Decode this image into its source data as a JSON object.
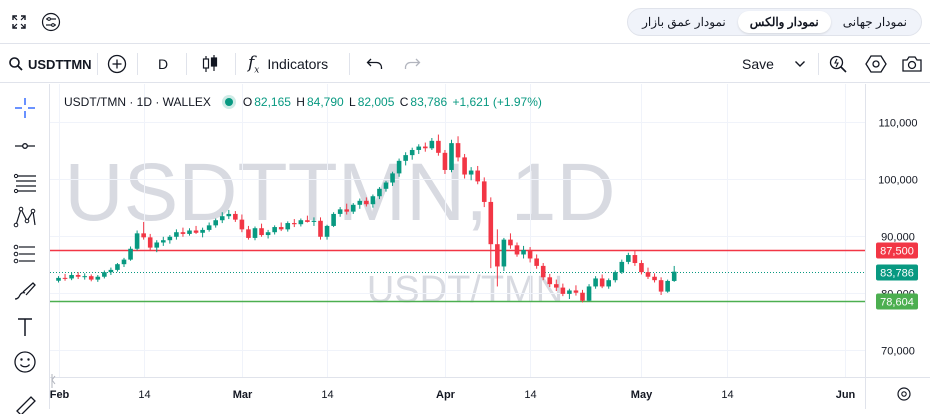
{
  "topbar": {
    "tabs": [
      {
        "label": "نمودار جهانی",
        "active": false
      },
      {
        "label": "نمودار والکس",
        "active": true
      },
      {
        "label": "نمودار عمق بازار",
        "active": false
      }
    ]
  },
  "toolbar": {
    "symbol": "USDTTMN",
    "interval": "D",
    "indicators_label": "Indicators",
    "save_label": "Save"
  },
  "legend": {
    "title": "USDT/TMN · 1D · WALLEX",
    "open_label": "O",
    "open": "82,165",
    "high_label": "H",
    "high": "84,790",
    "low_label": "L",
    "low": "82,005",
    "close_label": "C",
    "close": "83,786",
    "change": "+1,621 (+1.97%)"
  },
  "watermark": {
    "large": "USDTTMN, 1D",
    "small": "USDT/TMN"
  },
  "colors": {
    "up": "#089981",
    "down": "#f23645",
    "resistance": "#f23645",
    "support": "#4caf50",
    "price": "#089981"
  },
  "chart_data": {
    "type": "candlestick",
    "y_ticks": [
      {
        "value": 110000,
        "label": "110,000"
      },
      {
        "value": 100000,
        "label": "100,000"
      },
      {
        "value": 90000,
        "label": "90,000"
      },
      {
        "value": 80000,
        "label": "80,000"
      },
      {
        "value": 70000,
        "label": "70,000"
      }
    ],
    "x_ticks": [
      {
        "day": 0,
        "label": "Feb"
      },
      {
        "day": 13,
        "label": "14"
      },
      {
        "day": 28,
        "label": "Mar"
      },
      {
        "day": 41,
        "label": "14"
      },
      {
        "day": 59,
        "label": "Apr"
      },
      {
        "day": 72,
        "label": "14"
      },
      {
        "day": 89,
        "label": "May"
      },
      {
        "day": 102,
        "label": "14"
      },
      {
        "day": 120,
        "label": "Jun"
      }
    ],
    "horizontal_lines": [
      {
        "value": 87500,
        "label": "87,500",
        "color": "#f23645"
      },
      {
        "value": 78604,
        "label": "78,604",
        "color": "#4caf50"
      }
    ],
    "last_price": {
      "value": 83786,
      "label": "83,786"
    },
    "candles": [
      [
        82200,
        83000,
        81900,
        82700
      ],
      [
        82700,
        83400,
        82200,
        82600
      ],
      [
        82600,
        83600,
        82300,
        83200
      ],
      [
        83200,
        83700,
        82500,
        82900
      ],
      [
        82900,
        83500,
        82400,
        83000
      ],
      [
        83000,
        83300,
        82100,
        82400
      ],
      [
        82400,
        83200,
        82000,
        82900
      ],
      [
        82900,
        84000,
        82600,
        83700
      ],
      [
        83700,
        84500,
        83200,
        84100
      ],
      [
        84100,
        85300,
        83800,
        85100
      ],
      [
        85100,
        86200,
        84600,
        85900
      ],
      [
        85900,
        88200,
        85700,
        87800
      ],
      [
        87800,
        91000,
        87500,
        90500
      ],
      [
        90500,
        92500,
        89400,
        89800
      ],
      [
        89800,
        90400,
        87400,
        88000
      ],
      [
        88000,
        89300,
        87200,
        88900
      ],
      [
        88900,
        89900,
        88300,
        89300
      ],
      [
        89300,
        90200,
        88700,
        89900
      ],
      [
        89900,
        91200,
        89400,
        90700
      ],
      [
        90700,
        91500,
        89900,
        90400
      ],
      [
        90400,
        91400,
        90100,
        91000
      ],
      [
        91000,
        91800,
        90400,
        90600
      ],
      [
        90600,
        91500,
        89800,
        91100
      ],
      [
        91100,
        92400,
        90800,
        91900
      ],
      [
        91900,
        93100,
        91500,
        92800
      ],
      [
        92800,
        94200,
        92300,
        93500
      ],
      [
        93500,
        94600,
        93000,
        93900
      ],
      [
        93900,
        94400,
        92500,
        92900
      ],
      [
        92900,
        93800,
        90700,
        91200
      ],
      [
        91200,
        91800,
        89400,
        89700
      ],
      [
        89700,
        91700,
        89300,
        91400
      ],
      [
        91400,
        92200,
        89900,
        90200
      ],
      [
        90200,
        91100,
        89600,
        90700
      ],
      [
        90700,
        91900,
        90300,
        91600
      ],
      [
        91600,
        92400,
        90900,
        91200
      ],
      [
        91200,
        92600,
        90800,
        92300
      ],
      [
        92300,
        93000,
        91600,
        92100
      ],
      [
        92100,
        93100,
        91700,
        92800
      ],
      [
        92800,
        93600,
        92400,
        92500
      ],
      [
        92500,
        93300,
        91800,
        92700
      ],
      [
        92700,
        93300,
        89400,
        89900
      ],
      [
        89900,
        92000,
        89400,
        91800
      ],
      [
        91800,
        94200,
        91600,
        93900
      ],
      [
        93900,
        95100,
        93400,
        94700
      ],
      [
        94700,
        95700,
        93800,
        94300
      ],
      [
        94300,
        95800,
        93900,
        95500
      ],
      [
        95500,
        96600,
        94800,
        96200
      ],
      [
        96200,
        96800,
        95200,
        95600
      ],
      [
        95600,
        97300,
        95000,
        97000
      ],
      [
        97000,
        98600,
        96500,
        98300
      ],
      [
        98300,
        99700,
        97800,
        99400
      ],
      [
        99400,
        101300,
        98800,
        101000
      ],
      [
        101000,
        103600,
        100400,
        103200
      ],
      [
        103200,
        104700,
        102400,
        104200
      ],
      [
        104200,
        105500,
        103400,
        105100
      ],
      [
        105100,
        106100,
        104400,
        105700
      ],
      [
        105700,
        106400,
        104800,
        105400
      ],
      [
        105400,
        107200,
        105100,
        106700
      ],
      [
        106700,
        107800,
        104100,
        104600
      ],
      [
        104600,
        105100,
        100900,
        101600
      ],
      [
        101600,
        106900,
        101200,
        106300
      ],
      [
        106300,
        107500,
        103100,
        103800
      ],
      [
        103800,
        104400,
        100100,
        100800
      ],
      [
        100800,
        102100,
        99800,
        101500
      ],
      [
        101500,
        102300,
        99100,
        99600
      ],
      [
        99600,
        100300,
        95100,
        96000
      ],
      [
        96000,
        96800,
        84400,
        88600
      ],
      [
        88600,
        91200,
        81200,
        84700
      ],
      [
        84700,
        89700,
        83900,
        89400
      ],
      [
        89400,
        90500,
        87800,
        88400
      ],
      [
        88400,
        88900,
        86400,
        86800
      ],
      [
        86800,
        88300,
        86100,
        87600
      ],
      [
        87600,
        88100,
        85400,
        86100
      ],
      [
        86100,
        86800,
        84300,
        84800
      ],
      [
        84800,
        85300,
        82300,
        82800
      ],
      [
        82800,
        83400,
        81100,
        81600
      ],
      [
        81600,
        82400,
        80400,
        81000
      ],
      [
        81000,
        81700,
        79500,
        79900
      ],
      [
        79900,
        80800,
        79000,
        80500
      ],
      [
        80500,
        81400,
        79600,
        80100
      ],
      [
        80100,
        80600,
        78400,
        78700
      ],
      [
        78700,
        81600,
        78600,
        81200
      ],
      [
        81200,
        83000,
        80800,
        82600
      ],
      [
        82600,
        83300,
        80900,
        81200
      ],
      [
        81200,
        82600,
        80800,
        82300
      ],
      [
        82300,
        84000,
        81900,
        83700
      ],
      [
        83700,
        85900,
        83400,
        85500
      ],
      [
        85500,
        87100,
        85100,
        86700
      ],
      [
        86700,
        87400,
        84800,
        85300
      ],
      [
        85300,
        85800,
        83300,
        83700
      ],
      [
        83700,
        84500,
        82500,
        82900
      ],
      [
        82900,
        83500,
        81900,
        82300
      ],
      [
        82300,
        82800,
        79700,
        80300
      ],
      [
        80300,
        82400,
        80100,
        82165
      ],
      [
        82165,
        84790,
        82005,
        83786
      ]
    ]
  }
}
